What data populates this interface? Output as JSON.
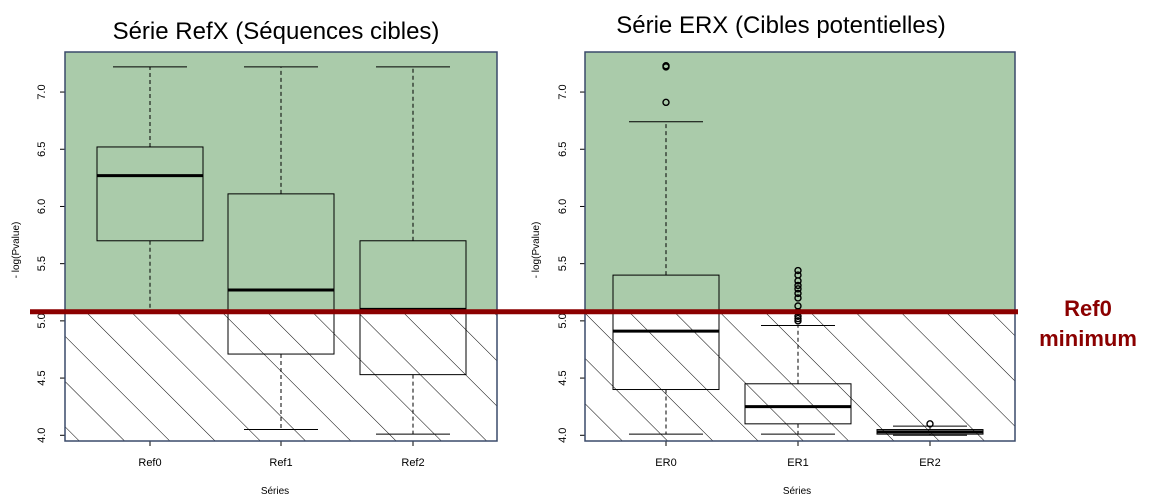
{
  "threshold": {
    "value": 5.08,
    "label_line1": "Ref0",
    "label_line2": "minimum",
    "color": "#8b0000"
  },
  "colors": {
    "above_fill": "#aacbaa",
    "frame": "#3a4a6a",
    "hatch": "#000000"
  },
  "chart_data": [
    {
      "type": "box",
      "title": "Série RefX (Séquences cibles)",
      "xlabel": "Séries",
      "ylabel": "- log(Pvalue)",
      "ylim": [
        3.95,
        7.35
      ],
      "yticks": [
        "4.0",
        "4.5",
        "5.0",
        "5.5",
        "6.0",
        "6.5",
        "7.0"
      ],
      "categories": [
        "Ref0",
        "Ref1",
        "Ref2"
      ],
      "boxes": [
        {
          "name": "Ref0",
          "whisker_low": 5.08,
          "q1": 5.7,
          "median": 6.27,
          "q3": 6.52,
          "whisker_high": 7.22,
          "outliers": []
        },
        {
          "name": "Ref1",
          "whisker_low": 4.05,
          "q1": 4.71,
          "median": 5.27,
          "q3": 6.11,
          "whisker_high": 7.22,
          "outliers": []
        },
        {
          "name": "Ref2",
          "whisker_low": 4.01,
          "q1": 4.53,
          "median": 5.1,
          "q3": 5.7,
          "whisker_high": 7.22,
          "outliers": []
        }
      ]
    },
    {
      "type": "box",
      "title": "Série ERX (Cibles potentielles)",
      "xlabel": "Séries",
      "ylabel": "- log(Pvalue)",
      "ylim": [
        3.95,
        7.35
      ],
      "yticks": [
        "4.0",
        "4.5",
        "5.0",
        "5.5",
        "6.0",
        "6.5",
        "7.0"
      ],
      "categories": [
        "ER0",
        "ER1",
        "ER2"
      ],
      "boxes": [
        {
          "name": "ER0",
          "whisker_low": 4.01,
          "q1": 4.4,
          "median": 4.91,
          "q3": 5.4,
          "whisker_high": 6.74,
          "outliers": [
            6.91,
            7.22,
            7.23
          ]
        },
        {
          "name": "ER1",
          "whisker_low": 4.01,
          "q1": 4.1,
          "median": 4.25,
          "q3": 4.45,
          "whisker_high": 4.96,
          "outliers": [
            5.0,
            5.02,
            5.04,
            5.08,
            5.13,
            5.2,
            5.24,
            5.28,
            5.31,
            5.35,
            5.4,
            5.44
          ]
        },
        {
          "name": "ER2",
          "whisker_low": 4.0,
          "q1": 4.01,
          "median": 4.03,
          "q3": 4.05,
          "whisker_high": 4.08,
          "outliers": [
            4.1
          ]
        }
      ]
    }
  ]
}
